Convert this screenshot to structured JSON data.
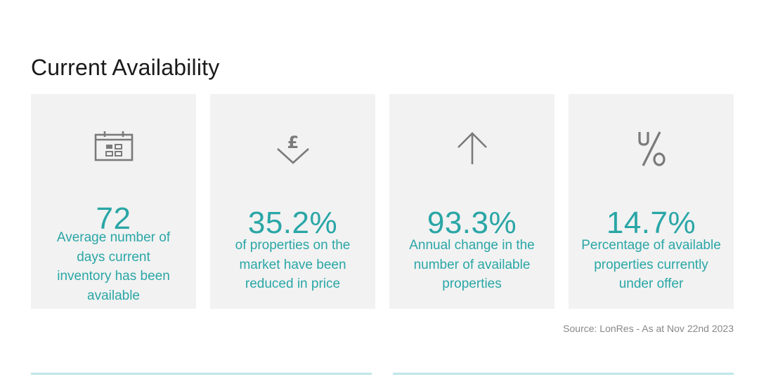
{
  "title": "Current Availability",
  "cards": [
    {
      "icon": "calendar-icon",
      "value": "72",
      "description": "Average number of days current inventory has been available"
    },
    {
      "icon": "pound-down-arrow-icon",
      "value": "35.2%",
      "description": "of properties on the market have been reduced in price"
    },
    {
      "icon": "arrow-up-icon",
      "value": "93.3%",
      "description": "Annual change in the number of available properties"
    },
    {
      "icon": "under-offer-percent-icon",
      "value": "14.7%",
      "description": "Percentage of available properties currently under offer"
    }
  ],
  "source": "Source: LonRes - As at Nov 22nd 2023",
  "colors": {
    "accent": "#2aa6a6",
    "card_background": "#f2f2f2",
    "icon": "#7a7a7a",
    "rule": "#bfe6e8",
    "title": "#1a1a1a",
    "source_text": "#888888"
  }
}
